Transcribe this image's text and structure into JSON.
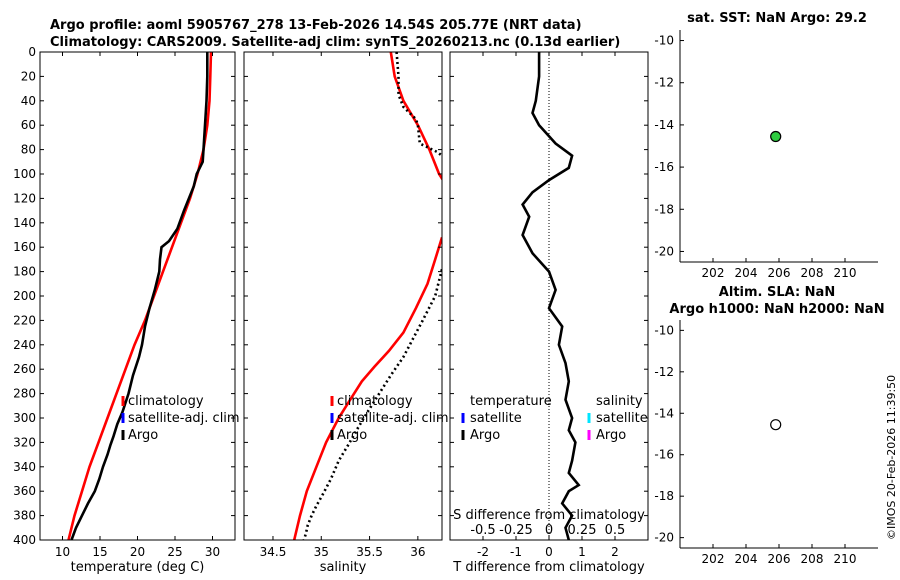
{
  "title_line1": "Argo profile: aoml 5905767_278 13-Feb-2026 14.54S 205.77E (NRT data)",
  "title_line2": "Climatology: CARS2009. Satellite-adj clim: synTS_20260213.nc (0.13d earlier)",
  "footer_stamp": "©IMOS 20-Feb-2026 11:39:50",
  "colors": {
    "climatology": "#ff0000",
    "satellite": "#0000ff",
    "argo": "#000000",
    "sat_salinity": "#00e5ff",
    "argo_salinity": "#ff00ff",
    "sst_marker": "#2ecc40"
  },
  "chart_data": [
    {
      "id": "temperature",
      "type": "line",
      "xlabel": "temperature (deg C)",
      "xlim": [
        7,
        33
      ],
      "ylim": [
        0,
        400
      ],
      "y_reversed": true,
      "xticks": [
        10,
        15,
        20,
        25,
        30
      ],
      "yticks": [
        0,
        20,
        40,
        60,
        80,
        100,
        120,
        140,
        160,
        180,
        200,
        220,
        240,
        260,
        280,
        300,
        320,
        340,
        360,
        380,
        400
      ],
      "legend": [
        "climatology",
        "satellite-adj. clim",
        "Argo"
      ],
      "series": [
        {
          "name": "climatology",
          "color": "#ff0000",
          "dash": false,
          "x": [
            29.8,
            29.7,
            29.6,
            29.3,
            28.8,
            28.0,
            27.0,
            25.8,
            24.6,
            23.4,
            22.2,
            21.0,
            19.6,
            18.4,
            17.2,
            16.0,
            14.8,
            13.6,
            12.6,
            11.6,
            10.8
          ],
          "y": [
            0,
            20,
            40,
            60,
            80,
            100,
            120,
            140,
            160,
            180,
            200,
            220,
            240,
            260,
            280,
            300,
            320,
            340,
            360,
            380,
            400
          ]
        },
        {
          "name": "Argo",
          "color": "#000000",
          "dash": false,
          "x": [
            29.3,
            29.3,
            29.2,
            29.0,
            28.8,
            28.7,
            27.9,
            27.5,
            26.2,
            25.3,
            24.2,
            23.2,
            23.0,
            22.9,
            22.3,
            21.6,
            21.0,
            20.6,
            20.2,
            19.4,
            18.8,
            18.0,
            17.3,
            16.8,
            16.4,
            16.0,
            15.4,
            14.9,
            14.3,
            13.4,
            12.6,
            11.8,
            11.2
          ],
          "y": [
            0,
            20,
            40,
            60,
            80,
            90,
            100,
            110,
            130,
            145,
            155,
            160,
            170,
            180,
            195,
            210,
            225,
            240,
            250,
            265,
            280,
            295,
            305,
            315,
            322,
            330,
            340,
            350,
            360,
            370,
            380,
            390,
            400
          ]
        }
      ]
    },
    {
      "id": "salinity",
      "type": "line",
      "xlabel": "salinity",
      "xlim": [
        34.2,
        36.25
      ],
      "ylim": [
        0,
        400
      ],
      "y_reversed": true,
      "xticks": [
        34.5,
        35,
        35.5,
        36
      ],
      "xticklabels": [
        "34.5",
        "35",
        "35.5",
        "36"
      ],
      "legend": [
        "climatology",
        "satellite-adj. clim",
        "Argo"
      ],
      "series": [
        {
          "name": "climatology",
          "color": "#ff0000",
          "dash": false,
          "x": [
            35.72,
            35.76,
            35.85,
            36.0,
            36.12,
            36.22,
            36.3
          ],
          "y": [
            0,
            20,
            40,
            60,
            80,
            100,
            110
          ]
        },
        {
          "name": "climatology",
          "color": "#ff0000",
          "dash": false,
          "x": [
            36.25,
            36.18,
            36.1,
            35.98,
            35.85,
            35.7,
            35.55,
            35.42,
            35.3,
            35.18,
            35.05,
            34.95,
            34.85,
            34.78,
            34.72
          ],
          "y": [
            152,
            170,
            190,
            210,
            230,
            245,
            258,
            270,
            285,
            300,
            320,
            340,
            360,
            380,
            400
          ]
        },
        {
          "name": "Argo",
          "color": "#000000",
          "dash": true,
          "x": [
            35.78,
            35.8,
            35.8,
            35.85,
            35.98,
            36.0,
            36.02,
            36.1,
            36.2,
            36.25
          ],
          "y": [
            0,
            20,
            35,
            45,
            55,
            60,
            75,
            78,
            82,
            85
          ]
        },
        {
          "name": "Argo",
          "color": "#000000",
          "dash": true,
          "x": [
            36.25,
            36.18,
            36.05,
            35.95,
            35.85,
            35.72,
            35.6,
            35.48,
            35.38,
            35.28,
            35.18,
            35.1,
            35.02,
            34.95,
            34.9,
            34.86,
            34.84,
            34.82
          ],
          "y": [
            178,
            200,
            220,
            235,
            250,
            265,
            280,
            295,
            308,
            322,
            335,
            350,
            362,
            372,
            380,
            388,
            395,
            400
          ]
        }
      ]
    },
    {
      "id": "tdiff",
      "type": "line",
      "xlabel": "T difference from climatology",
      "top_axis_label": "S difference from climatology",
      "xlim": [
        -3,
        3
      ],
      "ylim": [
        0,
        400
      ],
      "y_reversed": true,
      "xticks": [
        -2,
        -1,
        0,
        1,
        2
      ],
      "top_ticklabels": [
        "-0.5",
        "-0.25",
        "0",
        "0.25",
        "0.5"
      ],
      "legend_t_title": "temperature",
      "legend_s_title": "salinity",
      "legend_t": [
        "satellite",
        "Argo"
      ],
      "legend_s": [
        "satellite",
        "Argo"
      ],
      "series": [
        {
          "name": "Argo T diff",
          "color": "#000000",
          "dash": false,
          "x": [
            -0.3,
            -0.3,
            -0.4,
            -0.5,
            -0.3,
            0.2,
            0.7,
            0.6,
            0.0,
            -0.5,
            -0.8,
            -0.6,
            -0.8,
            -0.5,
            0.0,
            0.2,
            0.0,
            0.4,
            0.3,
            0.5,
            0.6,
            0.5,
            0.7,
            0.6,
            0.8,
            0.7,
            0.6,
            0.9,
            0.6,
            0.4,
            0.7,
            0.5,
            0.6
          ],
          "y": [
            0,
            20,
            40,
            50,
            60,
            75,
            85,
            95,
            105,
            115,
            125,
            135,
            150,
            165,
            180,
            195,
            210,
            225,
            240,
            255,
            270,
            285,
            300,
            310,
            320,
            335,
            345,
            355,
            360,
            370,
            380,
            390,
            400
          ]
        }
      ]
    },
    {
      "id": "sst",
      "type": "scatter",
      "title": "sat. SST: NaN Argo: 29.2",
      "xlim": [
        200,
        212
      ],
      "ylim": [
        -20.5,
        -9.5
      ],
      "xticks": [
        202,
        204,
        206,
        208,
        210
      ],
      "yticks": [
        -10,
        -12,
        -14,
        -16,
        -18,
        -20
      ],
      "points": [
        {
          "x": 205.8,
          "y": -14.55,
          "filled": true
        }
      ]
    },
    {
      "id": "sla",
      "type": "scatter",
      "title_line1": "Altim. SLA: NaN",
      "title_line2": "Argo h1000: NaN h2000: NaN",
      "xlim": [
        200,
        212
      ],
      "ylim": [
        -20.5,
        -9.5
      ],
      "xticks": [
        202,
        204,
        206,
        208,
        210
      ],
      "yticks": [
        -10,
        -12,
        -14,
        -16,
        -18,
        -20
      ],
      "points": [
        {
          "x": 205.8,
          "y": -14.55,
          "filled": false
        }
      ]
    }
  ]
}
